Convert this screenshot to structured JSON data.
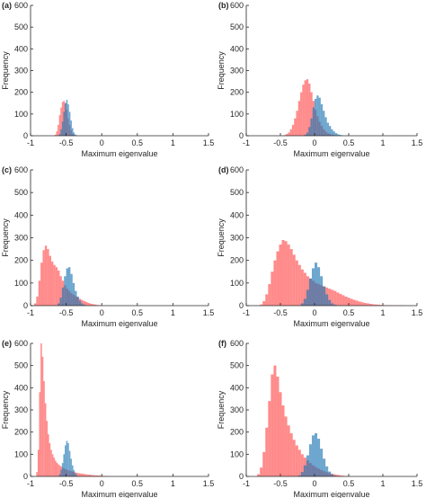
{
  "figure": {
    "panels": [
      {
        "tag": "(a)"
      },
      {
        "tag": "(b)"
      },
      {
        "tag": "(c)"
      },
      {
        "tag": "(d)"
      },
      {
        "tag": "(e)"
      },
      {
        "tag": "(f)"
      }
    ]
  },
  "chart_data": [
    {
      "type": "histogram",
      "panel": "(a)",
      "xlabel": "Maximum eigenvalue",
      "ylabel": "Frequency",
      "xlim": [
        -1,
        1.5
      ],
      "ylim": [
        0,
        600
      ],
      "xticks": [
        "-1",
        "-0.5",
        "0",
        "0.5",
        "1",
        "1.5"
      ],
      "yticks": [
        "0",
        "100",
        "200",
        "300",
        "400",
        "500",
        "600"
      ],
      "bin_width": 0.02,
      "series": [
        {
          "color": "#ff4d4d",
          "opacity": 0.65,
          "bin_start": [
            -0.66,
            -0.64,
            -0.62,
            -0.6,
            -0.58,
            -0.56,
            -0.54,
            -0.52,
            -0.5,
            -0.48,
            -0.46,
            -0.44,
            -0.42,
            -0.4,
            -0.38
          ],
          "values": [
            5,
            20,
            50,
            95,
            130,
            155,
            160,
            150,
            120,
            80,
            50,
            25,
            10,
            4,
            2
          ]
        },
        {
          "color": "#1f77b4",
          "opacity": 0.65,
          "bin_start": [
            -0.6,
            -0.58,
            -0.56,
            -0.54,
            -0.52,
            -0.5,
            -0.48,
            -0.46,
            -0.44,
            -0.42,
            -0.4,
            -0.38,
            -0.36
          ],
          "values": [
            8,
            30,
            65,
            110,
            150,
            165,
            145,
            110,
            70,
            35,
            15,
            5,
            2
          ]
        }
      ]
    },
    {
      "type": "histogram",
      "panel": "(b)",
      "xlabel": "Maximum eigenvalue",
      "ylabel": "Frequency",
      "xlim": [
        -1,
        1.5
      ],
      "ylim": [
        0,
        600
      ],
      "xticks": [
        "-1",
        "-0.5",
        "0",
        "0.5",
        "1",
        "1.5"
      ],
      "yticks": [
        "0",
        "100",
        "200",
        "300",
        "400",
        "500",
        "600"
      ],
      "bin_width": 0.03,
      "series": [
        {
          "color": "#ff4d4d",
          "opacity": 0.65,
          "bin_start": [
            -0.45,
            -0.42,
            -0.39,
            -0.36,
            -0.33,
            -0.3,
            -0.27,
            -0.24,
            -0.21,
            -0.18,
            -0.15,
            -0.12,
            -0.09,
            -0.06,
            -0.03,
            0.0,
            0.03,
            0.06,
            0.09,
            0.12,
            0.15,
            0.18,
            0.21,
            0.24,
            0.27,
            0.3
          ],
          "values": [
            3,
            8,
            15,
            30,
            50,
            80,
            115,
            160,
            200,
            235,
            255,
            260,
            240,
            200,
            160,
            120,
            90,
            65,
            45,
            30,
            20,
            12,
            8,
            5,
            3,
            2
          ]
        },
        {
          "color": "#1f77b4",
          "opacity": 0.65,
          "bin_start": [
            -0.15,
            -0.12,
            -0.09,
            -0.06,
            -0.03,
            0.0,
            0.03,
            0.06,
            0.09,
            0.12,
            0.15,
            0.18,
            0.21,
            0.24,
            0.27,
            0.3,
            0.33,
            0.36,
            0.39
          ],
          "values": [
            5,
            15,
            40,
            80,
            130,
            170,
            185,
            175,
            145,
            115,
            85,
            60,
            45,
            30,
            20,
            12,
            7,
            4,
            2
          ]
        }
      ]
    },
    {
      "type": "histogram",
      "panel": "(c)",
      "xlabel": "Maximum eigenvalue",
      "ylabel": "Frequency",
      "xlim": [
        -1,
        1.5
      ],
      "ylim": [
        0,
        600
      ],
      "xticks": [
        "-1",
        "-0.5",
        "0",
        "0.5",
        "1",
        "1.5"
      ],
      "yticks": [
        "0",
        "100",
        "200",
        "300",
        "400",
        "500",
        "600"
      ],
      "bin_width": 0.03,
      "series": [
        {
          "color": "#ff4d4d",
          "opacity": 0.65,
          "bin_start": [
            -0.95,
            -0.92,
            -0.89,
            -0.86,
            -0.83,
            -0.8,
            -0.77,
            -0.74,
            -0.71,
            -0.68,
            -0.65,
            -0.62,
            -0.59,
            -0.56,
            -0.53,
            -0.5,
            -0.47,
            -0.44,
            -0.41,
            -0.38,
            -0.35,
            -0.32,
            -0.29,
            -0.26,
            -0.23,
            -0.2,
            -0.17,
            -0.14,
            -0.11,
            -0.08,
            -0.05,
            -0.02
          ],
          "values": [
            10,
            40,
            110,
            190,
            245,
            265,
            250,
            220,
            195,
            180,
            170,
            155,
            130,
            110,
            90,
            75,
            65,
            55,
            48,
            42,
            36,
            30,
            25,
            20,
            16,
            12,
            9,
            7,
            5,
            3,
            2,
            1
          ]
        },
        {
          "color": "#1f77b4",
          "opacity": 0.65,
          "bin_start": [
            -0.62,
            -0.59,
            -0.56,
            -0.53,
            -0.5,
            -0.47,
            -0.44,
            -0.41,
            -0.38,
            -0.35,
            -0.32,
            -0.29,
            -0.26
          ],
          "values": [
            10,
            35,
            80,
            130,
            165,
            170,
            140,
            100,
            65,
            40,
            22,
            10,
            4
          ]
        }
      ]
    },
    {
      "type": "histogram",
      "panel": "(d)",
      "xlabel": "Maximum eigenvalue",
      "ylabel": "Frequency",
      "xlim": [
        -1,
        1.5
      ],
      "ylim": [
        0,
        600
      ],
      "xticks": [
        "-1",
        "-0.5",
        "0",
        "0.5",
        "1",
        "1.5"
      ],
      "yticks": [
        "0",
        "100",
        "200",
        "300",
        "400",
        "500",
        "600"
      ],
      "bin_width": 0.04,
      "series": [
        {
          "color": "#ff4d4d",
          "opacity": 0.65,
          "bin_start": [
            -0.8,
            -0.76,
            -0.72,
            -0.68,
            -0.64,
            -0.6,
            -0.56,
            -0.52,
            -0.48,
            -0.44,
            -0.4,
            -0.36,
            -0.32,
            -0.28,
            -0.24,
            -0.2,
            -0.16,
            -0.12,
            -0.08,
            -0.04,
            0.0,
            0.04,
            0.08,
            0.12,
            0.16,
            0.2,
            0.24,
            0.28,
            0.32,
            0.36,
            0.4,
            0.44,
            0.48,
            0.52,
            0.56,
            0.6,
            0.64,
            0.68,
            0.72,
            0.76,
            0.8,
            0.84,
            0.88,
            0.92,
            0.96,
            1.0,
            1.04,
            1.08,
            1.12,
            1.16,
            1.2,
            1.24,
            1.28
          ],
          "values": [
            5,
            20,
            50,
            95,
            150,
            200,
            240,
            270,
            290,
            285,
            270,
            250,
            225,
            200,
            180,
            160,
            145,
            130,
            120,
            110,
            100,
            95,
            90,
            85,
            80,
            75,
            70,
            65,
            58,
            52,
            46,
            40,
            35,
            30,
            26,
            22,
            18,
            15,
            12,
            10,
            8,
            6,
            5,
            4,
            3,
            2,
            2,
            1,
            1,
            1,
            1,
            1,
            1
          ]
        },
        {
          "color": "#1f77b4",
          "opacity": 0.65,
          "bin_start": [
            -0.2,
            -0.16,
            -0.12,
            -0.08,
            -0.04,
            0.0,
            0.04,
            0.08,
            0.12,
            0.16,
            0.2,
            0.24,
            0.28
          ],
          "values": [
            10,
            30,
            70,
            120,
            165,
            190,
            170,
            130,
            85,
            50,
            25,
            10,
            4
          ]
        }
      ]
    },
    {
      "type": "histogram",
      "panel": "(e)",
      "xlabel": "Maximum eigenvalue",
      "ylabel": "Frequency",
      "xlim": [
        -1,
        1.5
      ],
      "ylim": [
        0,
        600
      ],
      "xticks": [
        "-1",
        "-0.5",
        "0",
        "0.5",
        "1",
        "1.5"
      ],
      "yticks": [
        "0",
        "100",
        "200",
        "300",
        "400",
        "500",
        "600"
      ],
      "bin_width": 0.02,
      "series": [
        {
          "color": "#ff4d4d",
          "opacity": 0.65,
          "bin_start": [
            -0.92,
            -0.9,
            -0.88,
            -0.86,
            -0.84,
            -0.82,
            -0.8,
            -0.78,
            -0.76,
            -0.74,
            -0.72,
            -0.7,
            -0.68,
            -0.66,
            -0.64,
            -0.62,
            -0.6,
            -0.58,
            -0.56,
            -0.54,
            -0.52,
            -0.5,
            -0.48,
            -0.46,
            -0.44,
            -0.42,
            -0.4,
            -0.38,
            -0.36,
            -0.34,
            -0.32,
            -0.3,
            -0.28,
            -0.26,
            -0.24,
            -0.22,
            -0.2,
            -0.18,
            -0.16,
            -0.14,
            -0.12,
            -0.1,
            -0.08,
            -0.06,
            -0.04,
            -0.02,
            0.0,
            0.02,
            0.04,
            0.06,
            0.08,
            0.1
          ],
          "values": [
            20,
            120,
            380,
            600,
            540,
            430,
            330,
            250,
            190,
            150,
            120,
            100,
            85,
            72,
            62,
            55,
            50,
            45,
            40,
            36,
            33,
            30,
            28,
            26,
            24,
            22,
            20,
            18,
            17,
            15,
            14,
            13,
            12,
            11,
            10,
            9,
            8,
            8,
            7,
            6,
            6,
            5,
            5,
            4,
            4,
            3,
            3,
            2,
            2,
            2,
            1,
            1
          ]
        },
        {
          "color": "#1f77b4",
          "opacity": 0.65,
          "bin_start": [
            -0.6,
            -0.58,
            -0.56,
            -0.54,
            -0.52,
            -0.5,
            -0.48,
            -0.46,
            -0.44,
            -0.42,
            -0.4,
            -0.38,
            -0.36,
            -0.34
          ],
          "values": [
            10,
            30,
            60,
            100,
            140,
            160,
            150,
            115,
            80,
            50,
            28,
            14,
            6,
            2
          ]
        }
      ]
    },
    {
      "type": "histogram",
      "panel": "(f)",
      "xlabel": "Maximum eigenvalue",
      "ylabel": "Frequency",
      "xlim": [
        -1,
        1.5
      ],
      "ylim": [
        0,
        600
      ],
      "xticks": [
        "-1",
        "-0.5",
        "0",
        "0.5",
        "1",
        "1.5"
      ],
      "yticks": [
        "0",
        "100",
        "200",
        "300",
        "400",
        "500",
        "600"
      ],
      "bin_width": 0.04,
      "series": [
        {
          "color": "#ff4d4d",
          "opacity": 0.65,
          "bin_start": [
            -0.84,
            -0.8,
            -0.76,
            -0.72,
            -0.68,
            -0.64,
            -0.6,
            -0.56,
            -0.52,
            -0.48,
            -0.44,
            -0.4,
            -0.36,
            -0.32,
            -0.28,
            -0.24,
            -0.2,
            -0.16,
            -0.12,
            -0.08,
            -0.04,
            0.0,
            0.04,
            0.08,
            0.12,
            0.16,
            0.2,
            0.24,
            0.28,
            0.32,
            0.36,
            0.4,
            0.44,
            0.48
          ],
          "values": [
            10,
            40,
            110,
            220,
            340,
            460,
            500,
            450,
            380,
            320,
            270,
            230,
            195,
            165,
            140,
            120,
            100,
            85,
            72,
            60,
            50,
            42,
            35,
            29,
            24,
            19,
            15,
            12,
            9,
            7,
            5,
            3,
            2,
            1
          ]
        },
        {
          "color": "#1f77b4",
          "opacity": 0.65,
          "bin_start": [
            -0.24,
            -0.2,
            -0.16,
            -0.12,
            -0.08,
            -0.04,
            0.0,
            0.04,
            0.08,
            0.12,
            0.16,
            0.2,
            0.24,
            0.28
          ],
          "values": [
            5,
            20,
            50,
            95,
            145,
            185,
            195,
            170,
            125,
            80,
            45,
            22,
            9,
            3
          ]
        }
      ]
    }
  ]
}
